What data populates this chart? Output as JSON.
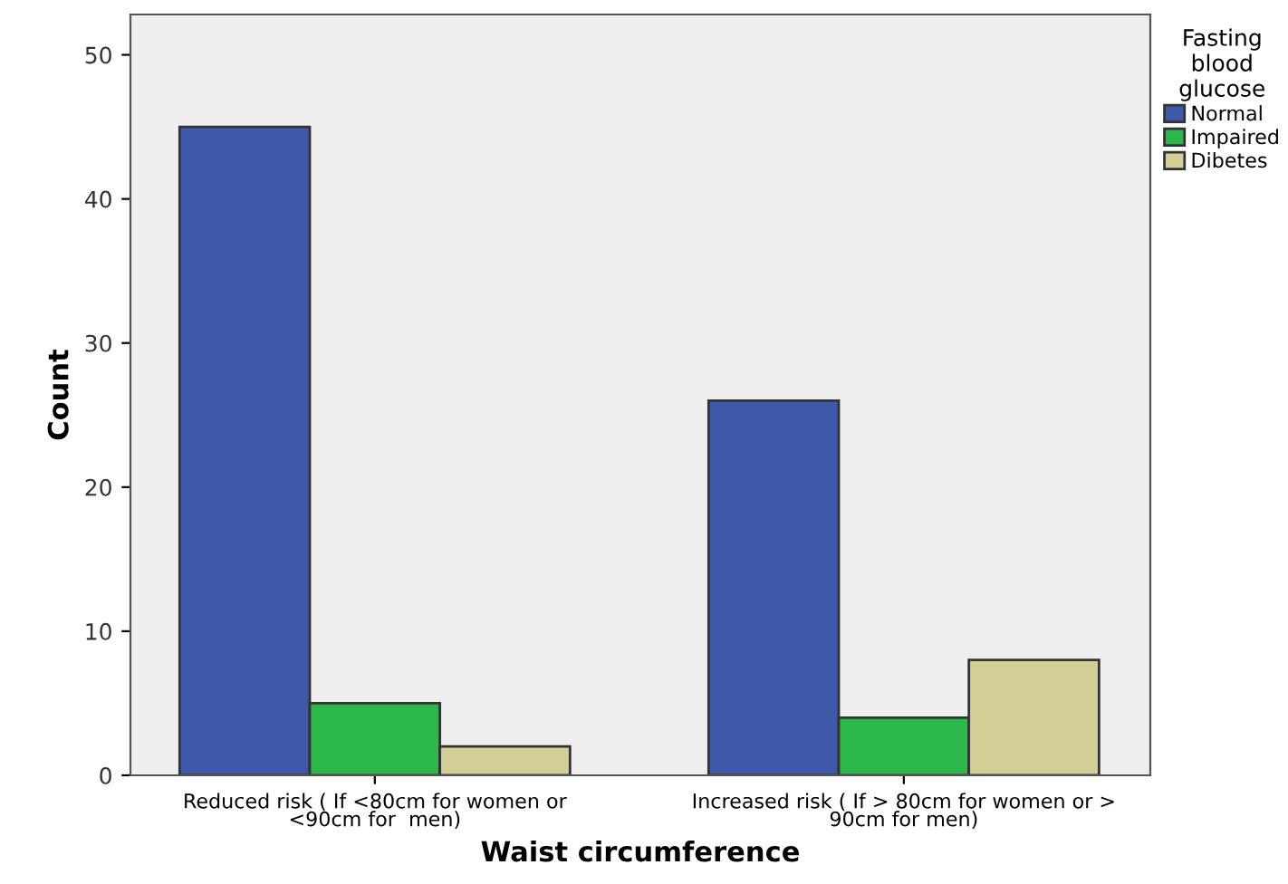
{
  "chart_data": {
    "type": "bar",
    "xlabel": "Waist circumference",
    "ylabel": "Count",
    "legend_title": "Fasting\nblood\nglucose",
    "categories": [
      "Reduced risk ( If <80cm for women or\n<90cm for  men)",
      "Increased risk ( If > 80cm for women or >\n90cm for men)"
    ],
    "series": [
      {
        "name": "Normal",
        "color": "#3e58aa",
        "values": [
          45,
          26
        ]
      },
      {
        "name": "Impaired",
        "color": "#2db84a",
        "values": [
          5,
          4
        ]
      },
      {
        "name": "Dibetes",
        "color": "#d4cf97",
        "values": [
          2,
          8
        ]
      }
    ],
    "ylim": [
      0,
      52.8
    ],
    "yticks": [
      0,
      10,
      20,
      30,
      40,
      50
    ],
    "grid": false,
    "legend": "top right"
  }
}
